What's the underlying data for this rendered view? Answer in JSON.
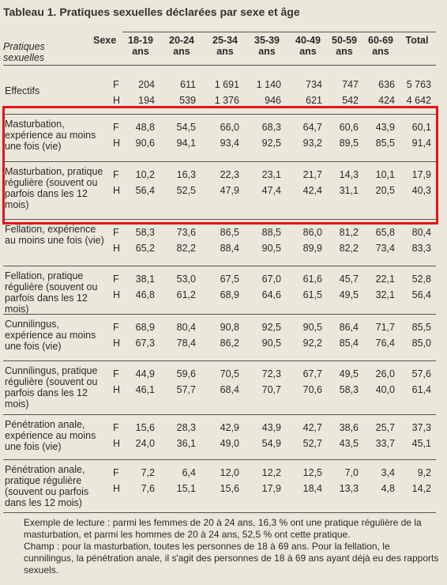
{
  "title": "Tableau 1. Pratiques sexuelles déclarées par sexe et âge",
  "header": {
    "columns": [
      "Pratiques sexuelles",
      "Sexe",
      "18-19 ans",
      "20-24 ans",
      "25-34 ans",
      "35-39 ans",
      "40-49 ans",
      "50-59 ans",
      "60-69 ans",
      "Total"
    ]
  },
  "table": {
    "rows": [
      {
        "label": "Effectifs",
        "lines": [
          {
            "sex": "F",
            "values": [
              "204",
              "611",
              "1 691",
              "1 140",
              "734",
              "747",
              "636",
              "5 763"
            ]
          },
          {
            "sex": "H",
            "values": [
              "194",
              "539",
              "1 376",
              "946",
              "621",
              "542",
              "424",
              "4 642"
            ]
          }
        ]
      },
      {
        "label": "Masturbation, expérience au moins une fois (vie)",
        "lines": [
          {
            "sex": "F",
            "values": [
              "48,8",
              "54,5",
              "66,0",
              "68,3",
              "64,7",
              "60,6",
              "43,9",
              "60,1"
            ]
          },
          {
            "sex": "H",
            "values": [
              "90,6",
              "94,1",
              "93,4",
              "92,5",
              "93,2",
              "89,5",
              "85,5",
              "91,4"
            ]
          }
        ]
      },
      {
        "label": "Masturbation, pratique régulière (souvent ou parfois dans les 12 mois)",
        "lines": [
          {
            "sex": "F",
            "values": [
              "10,2",
              "16,3",
              "22,3",
              "23,1",
              "21,7",
              "14,3",
              "10,1",
              "17,9"
            ]
          },
          {
            "sex": "H",
            "values": [
              "56,4",
              "52,5",
              "47,9",
              "47,4",
              "42,4",
              "31,1",
              "20,5",
              "40,3"
            ]
          }
        ]
      },
      {
        "label": "Fellation, expérience au moins une fois (vie)",
        "lines": [
          {
            "sex": "F",
            "values": [
              "58,3",
              "73,6",
              "86,5",
              "88,5",
              "86,0",
              "81,2",
              "65,8",
              "80,4"
            ]
          },
          {
            "sex": "H",
            "values": [
              "65,2",
              "82,2",
              "88,4",
              "90,5",
              "89,9",
              "82,2",
              "73,4",
              "83,3"
            ]
          }
        ]
      },
      {
        "label": "Fellation, pratique régulière (souvent ou parfois dans les 12 mois)",
        "lines": [
          {
            "sex": "F",
            "values": [
              "38,1",
              "53,0",
              "67,5",
              "67,0",
              "61,6",
              "45,7",
              "22,1",
              "52,8"
            ]
          },
          {
            "sex": "H",
            "values": [
              "46,8",
              "61,2",
              "68,9",
              "64,6",
              "61,5",
              "49,5",
              "32,1",
              "56,4"
            ]
          }
        ]
      },
      {
        "label": "Cunnilingus, expérience au moins une fois (vie)",
        "lines": [
          {
            "sex": "F",
            "values": [
              "68,9",
              "80,4",
              "90,8",
              "92,5",
              "90,5",
              "86,4",
              "71,7",
              "85,5"
            ]
          },
          {
            "sex": "H",
            "values": [
              "67,3",
              "78,4",
              "86,2",
              "90,5",
              "92,2",
              "85,4",
              "76,4",
              "85,0"
            ]
          }
        ]
      },
      {
        "label": "Cunnilingus, pratique régulière (souvent ou parfois dans les 12 mois)",
        "lines": [
          {
            "sex": "F",
            "values": [
              "44,9",
              "59,6",
              "70,5",
              "72,3",
              "67,7",
              "49,5",
              "26,0",
              "57,6"
            ]
          },
          {
            "sex": "H",
            "values": [
              "46,1",
              "57,7",
              "68,4",
              "70,7",
              "70,6",
              "58,3",
              "40,0",
              "61,4"
            ]
          }
        ]
      },
      {
        "label": "Pénétration anale, expérience au moins une fois (vie)",
        "lines": [
          {
            "sex": "F",
            "values": [
              "15,6",
              "28,3",
              "42,9",
              "43,9",
              "42,7",
              "38,6",
              "25,7",
              "37,3"
            ]
          },
          {
            "sex": "H",
            "values": [
              "24,0",
              "36,1",
              "49,0",
              "54,9",
              "52,7",
              "43,5",
              "33,7",
              "45,1"
            ]
          }
        ]
      },
      {
        "label": "Pénétration anale, pratique régulière (souvent ou parfois dans les 12 mois)",
        "lines": [
          {
            "sex": "F",
            "values": [
              "7,2",
              "6,4",
              "12,0",
              "12,2",
              "12,5",
              "7,0",
              "3,4",
              "9,2"
            ]
          },
          {
            "sex": "H",
            "values": [
              "7,6",
              "15,1",
              "15,6",
              "17,9",
              "18,4",
              "13,3",
              "4,8",
              "14,2"
            ]
          }
        ]
      }
    ]
  },
  "notes": [
    "Exemple de lecture : parmi les femmes de 20 à 24 ans, 16,3 % ont une pratique régulière de la masturbation, et parmi les hommes de 20 à 24 ans, 52,5 % ont cette pratique.",
    "Champ : pour la masturbation, toutes les personnes de 18 à 69 ans. Pour la fellation, le cunnilingus, la pénétration anale, il s'agit des personnes de 18 à 69 ans ayant déjà eu des rapports sexuels."
  ]
}
